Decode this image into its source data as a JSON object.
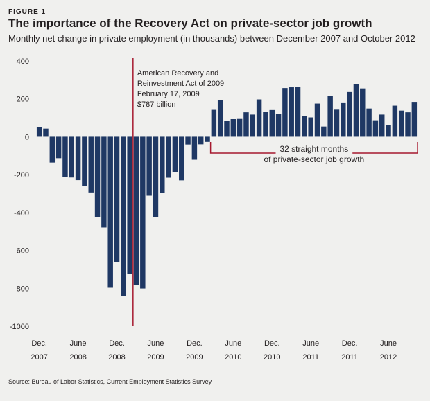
{
  "figure_label": "FIGURE 1",
  "title": "The importance of the Recovery Act on private-sector job growth",
  "subtitle": "Monthly net change in private employment (in thousands) between December 2007 and October 2012",
  "source": "Source: Bureau of Labor Statistics, Current Employment Statistics Survey",
  "colors": {
    "bar": "#1f3864",
    "annotation": "#a6192e",
    "background": "#f0f0ee"
  },
  "chart_data": {
    "type": "bar",
    "ylim": [
      -1000,
      400
    ],
    "yticks": [
      400,
      200,
      0,
      -200,
      -400,
      -600,
      -800,
      -1000
    ],
    "xticks": [
      {
        "index": 0,
        "line1": "Dec.",
        "line2": "2007"
      },
      {
        "index": 6,
        "line1": "June",
        "line2": "2008"
      },
      {
        "index": 12,
        "line1": "Dec.",
        "line2": "2008"
      },
      {
        "index": 18,
        "line1": "June",
        "line2": "2009"
      },
      {
        "index": 24,
        "line1": "Dec.",
        "line2": "2009"
      },
      {
        "index": 30,
        "line1": "June",
        "line2": "2010"
      },
      {
        "index": 36,
        "line1": "Dec.",
        "line2": "2010"
      },
      {
        "index": 42,
        "line1": "June",
        "line2": "2011"
      },
      {
        "index": 48,
        "line1": "Dec.",
        "line2": "2011"
      },
      {
        "index": 54,
        "line1": "June",
        "line2": "2012"
      }
    ],
    "start": "Dec. 2007",
    "end": "Oct. 2012",
    "values": [
      50,
      43,
      -136,
      -113,
      -213,
      -215,
      -229,
      -258,
      -294,
      -424,
      -479,
      -797,
      -660,
      -840,
      -723,
      -784,
      -801,
      -311,
      -425,
      -295,
      -216,
      -185,
      -230,
      -41,
      -121,
      -40,
      -27,
      142,
      193,
      84,
      93,
      94,
      129,
      117,
      197,
      133,
      141,
      119,
      257,
      261,
      264,
      108,
      102,
      175,
      54,
      216,
      143,
      181,
      236,
      278,
      255,
      149,
      87,
      117,
      63,
      164,
      138,
      129,
      184
    ],
    "annotation": {
      "line1": "American Recovery and",
      "line2": "Reinvestment Act of 2009",
      "line3": "February 17, 2009",
      "line4": "$787 billion",
      "between_index": [
        14,
        15
      ]
    },
    "bracket": {
      "line1": "32 straight months",
      "line2": "of private-sector job growth",
      "from_index": 27,
      "to_index": 58
    }
  }
}
